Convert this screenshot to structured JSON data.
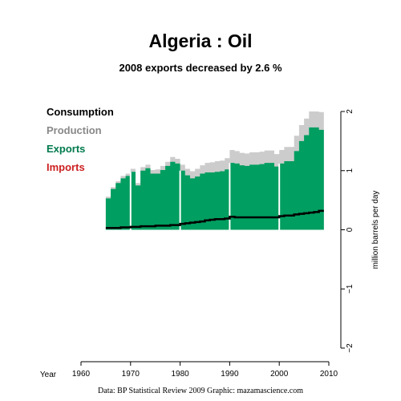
{
  "chart_data": {
    "type": "area",
    "title": "Algeria :  Oil",
    "subtitle": "2008 exports decreased by 2.6 %",
    "xlabel": "Year",
    "ylabel": "million barrels per day",
    "xlim": [
      1960,
      2010
    ],
    "ylim": [
      -2,
      2
    ],
    "x_ticks": [
      1960,
      1970,
      1980,
      1990,
      2000,
      2010
    ],
    "y_ticks": [
      -2,
      -1,
      0,
      1,
      2
    ],
    "legend": [
      "Consumption",
      "Production",
      "Exports",
      "Imports"
    ],
    "legend_position": "top-left",
    "colors": {
      "consumption": "#000000",
      "production": "#cccccc",
      "exports": "#009e60",
      "imports": "#cc1f1f",
      "decade_lines": "#ffffff"
    },
    "decade_markers": [
      1970,
      1980,
      1990,
      2000
    ],
    "years": [
      1965,
      1966,
      1967,
      1968,
      1969,
      1970,
      1971,
      1972,
      1973,
      1974,
      1975,
      1976,
      1977,
      1978,
      1979,
      1980,
      1981,
      1982,
      1983,
      1984,
      1985,
      1986,
      1987,
      1988,
      1989,
      1990,
      1991,
      1992,
      1993,
      1994,
      1995,
      1996,
      1997,
      1998,
      1999,
      2000,
      2001,
      2002,
      2003,
      2004,
      2005,
      2006,
      2007,
      2008
    ],
    "series": [
      {
        "name": "Production",
        "values": [
          0.56,
          0.72,
          0.82,
          0.91,
          0.95,
          1.03,
          0.79,
          1.06,
          1.1,
          1.01,
          1.02,
          1.08,
          1.15,
          1.23,
          1.2,
          1.1,
          1.03,
          0.99,
          1.03,
          1.09,
          1.13,
          1.14,
          1.16,
          1.17,
          1.21,
          1.35,
          1.33,
          1.3,
          1.29,
          1.31,
          1.31,
          1.32,
          1.34,
          1.34,
          1.28,
          1.35,
          1.4,
          1.4,
          1.59,
          1.77,
          1.88,
          2.0,
          2.0,
          1.99
        ]
      },
      {
        "name": "Exports",
        "values": [
          0.53,
          0.69,
          0.79,
          0.87,
          0.91,
          0.98,
          0.75,
          1.0,
          1.04,
          0.95,
          0.95,
          1.01,
          1.08,
          1.15,
          1.12,
          1.0,
          0.92,
          0.87,
          0.9,
          0.95,
          0.97,
          0.97,
          0.98,
          0.99,
          1.02,
          1.13,
          1.12,
          1.09,
          1.08,
          1.1,
          1.1,
          1.11,
          1.13,
          1.13,
          1.07,
          1.12,
          1.16,
          1.16,
          1.33,
          1.5,
          1.6,
          1.73,
          1.73,
          1.69
        ]
      },
      {
        "name": "Consumption",
        "values": [
          0.03,
          0.03,
          0.03,
          0.04,
          0.04,
          0.05,
          0.05,
          0.06,
          0.06,
          0.06,
          0.07,
          0.07,
          0.07,
          0.08,
          0.08,
          0.1,
          0.11,
          0.12,
          0.13,
          0.14,
          0.16,
          0.17,
          0.18,
          0.18,
          0.19,
          0.22,
          0.21,
          0.21,
          0.21,
          0.21,
          0.21,
          0.21,
          0.21,
          0.21,
          0.21,
          0.23,
          0.24,
          0.24,
          0.26,
          0.27,
          0.28,
          0.29,
          0.3,
          0.32
        ]
      }
    ]
  },
  "footer": "Data: BP Statistical Review 2009    Graphic: mazamascience.com"
}
